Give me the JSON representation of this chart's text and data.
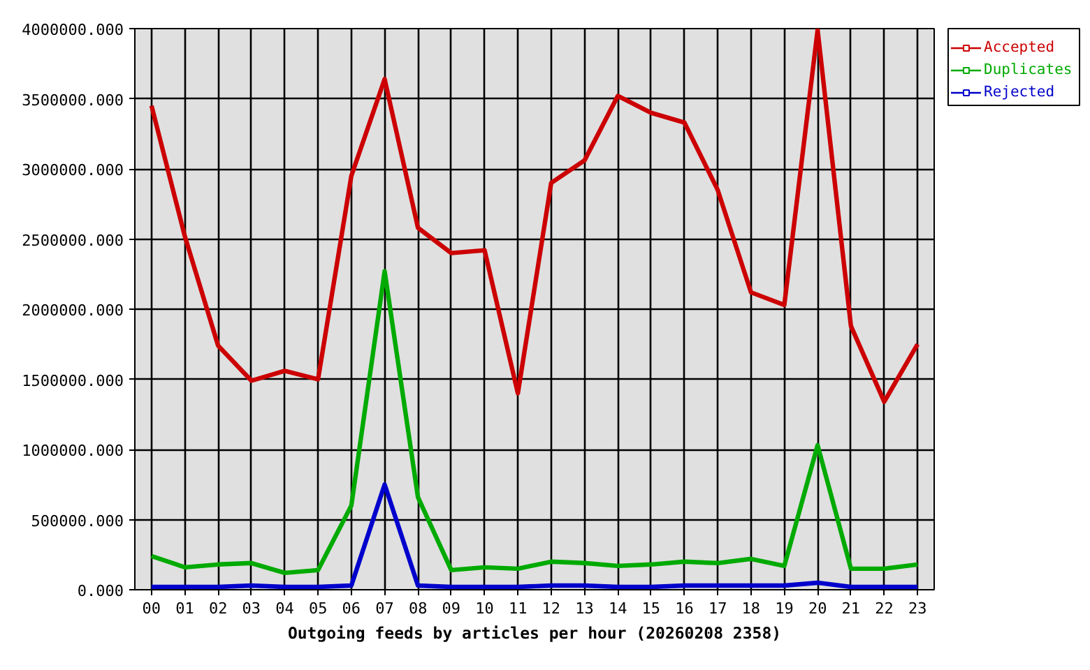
{
  "chart_data": {
    "type": "line",
    "xlabel": "Outgoing feeds by articles per hour (20260208 2358)",
    "categories": [
      "00",
      "01",
      "02",
      "03",
      "04",
      "05",
      "06",
      "07",
      "08",
      "09",
      "10",
      "11",
      "12",
      "13",
      "14",
      "15",
      "16",
      "17",
      "18",
      "19",
      "20",
      "21",
      "22",
      "23"
    ],
    "series": [
      {
        "name": "Accepted",
        "color": "#cc0000",
        "values": [
          3450000,
          2520000,
          1740000,
          1490000,
          1560000,
          1500000,
          2950000,
          3640000,
          2580000,
          2400000,
          2420000,
          1400000,
          2900000,
          3060000,
          3520000,
          3400000,
          3330000,
          2850000,
          2120000,
          2030000,
          3990000,
          1880000,
          1340000,
          1750000
        ]
      },
      {
        "name": "Duplicates",
        "color": "#00aa00",
        "values": [
          240000,
          160000,
          180000,
          190000,
          120000,
          140000,
          600000,
          2270000,
          660000,
          140000,
          160000,
          150000,
          200000,
          190000,
          170000,
          180000,
          200000,
          190000,
          220000,
          170000,
          1030000,
          150000,
          150000,
          180000
        ]
      },
      {
        "name": "Rejected",
        "color": "#0000cc",
        "values": [
          20000,
          20000,
          20000,
          30000,
          20000,
          20000,
          30000,
          750000,
          30000,
          20000,
          20000,
          20000,
          30000,
          30000,
          20000,
          20000,
          30000,
          30000,
          30000,
          30000,
          50000,
          20000,
          20000,
          20000
        ]
      }
    ],
    "ylim": [
      0,
      4000000
    ],
    "yticks": [
      {
        "value": 0,
        "label": "0.000"
      },
      {
        "value": 500000,
        "label": "500000.000"
      },
      {
        "value": 1000000,
        "label": "1000000.000"
      },
      {
        "value": 1500000,
        "label": "1500000.000"
      },
      {
        "value": 2000000,
        "label": "2000000.000"
      },
      {
        "value": 2500000,
        "label": "2500000.000"
      },
      {
        "value": 3000000,
        "label": "3000000.000"
      },
      {
        "value": 3500000,
        "label": "3500000.000"
      },
      {
        "value": 4000000,
        "label": "4000000.000"
      }
    ],
    "grid": true,
    "legend": "top right"
  }
}
